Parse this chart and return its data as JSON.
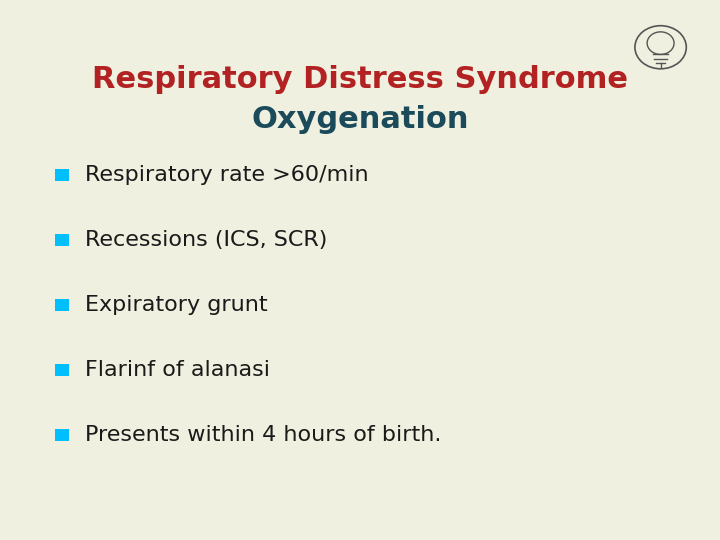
{
  "title_line1": "Respiratory Distress Syndrome",
  "title_line2": "Oxygenation",
  "title_color_line1": "#B22222",
  "title_color_line2": "#1B4B5A",
  "background_color": "#F0F0E0",
  "bullet_color": "#00BFFF",
  "bullet_text_color": "#1a1a1a",
  "bullet_items": [
    "Respiratory rate >60/min",
    "Recessions (ICS, SCR)",
    "Expiratory grunt",
    "Flarinf of alanasi",
    "Presents within 4 hours of birth."
  ],
  "title_fontsize": 22,
  "bullet_fontsize": 16,
  "figsize": [
    7.2,
    5.4
  ],
  "dpi": 100
}
